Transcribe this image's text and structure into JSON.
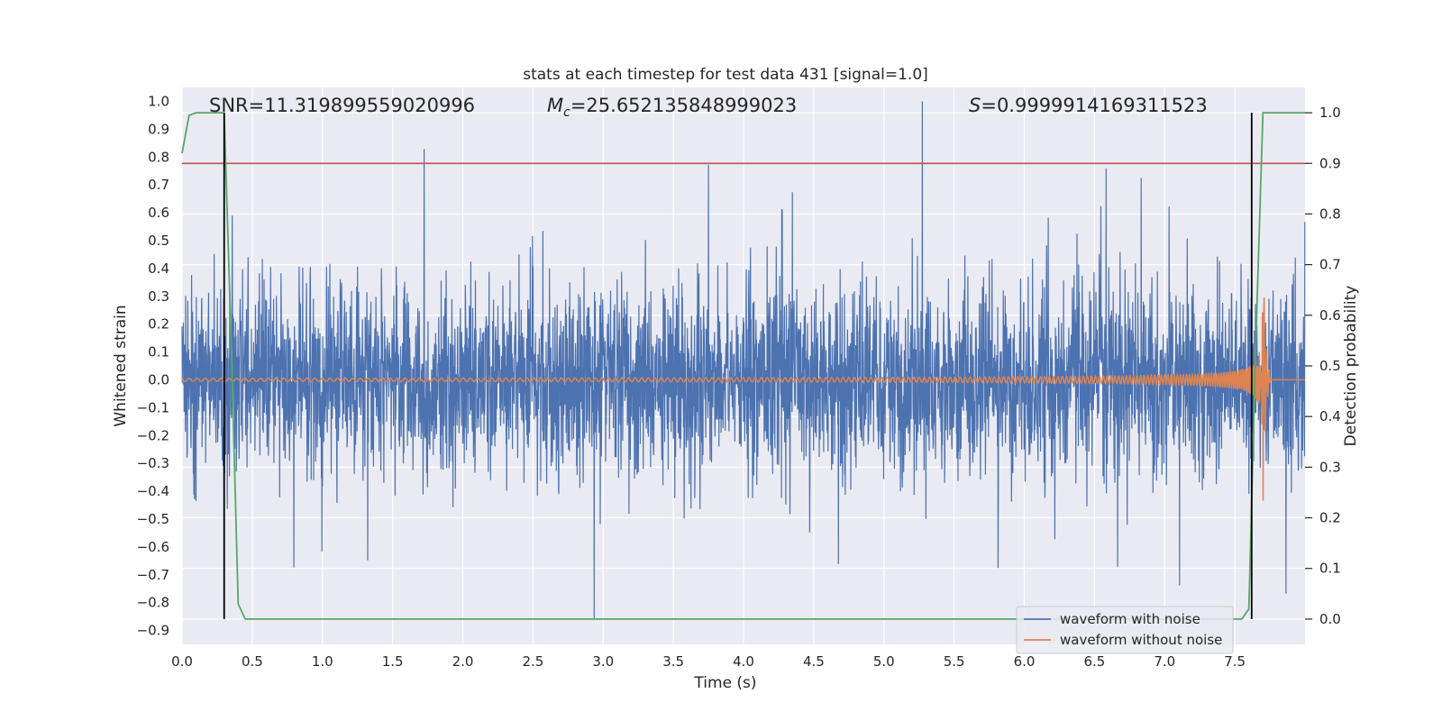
{
  "chart_data": {
    "type": "line",
    "title": "stats at each timestep for test data 431 [signal=1.0]",
    "xlabel": "Time (s)",
    "ylabel": "Whitened strain",
    "y2label": "Detection probability",
    "xlim": [
      0.0,
      8.0
    ],
    "ylim": [
      -0.95,
      1.05
    ],
    "y2lim": [
      -0.05,
      1.05
    ],
    "grid": true,
    "legend_position": "bottom-right",
    "x_ticks": [
      0.0,
      0.5,
      1.0,
      1.5,
      2.0,
      2.5,
      3.0,
      3.5,
      4.0,
      4.5,
      5.0,
      5.5,
      6.0,
      6.5,
      7.0,
      7.5
    ],
    "x_tick_labels": [
      "0.0",
      "0.5",
      "1.0",
      "1.5",
      "2.0",
      "2.5",
      "3.0",
      "3.5",
      "4.0",
      "4.5",
      "5.0",
      "5.5",
      "6.0",
      "6.5",
      "7.0",
      "7.5"
    ],
    "y_ticks": [
      1.0,
      0.9,
      0.8,
      0.7,
      0.6,
      0.5,
      0.4,
      0.3,
      0.2,
      0.1,
      0.0,
      -0.1,
      -0.2,
      -0.3,
      -0.4,
      -0.5,
      -0.6,
      -0.7,
      -0.8,
      -0.9
    ],
    "y_tick_labels": [
      "1.0",
      "0.9",
      "0.8",
      "0.7",
      "0.6",
      "0.5",
      "0.4",
      "0.3",
      "0.2",
      "0.1",
      "0.0",
      "−0.1",
      "−0.2",
      "−0.3",
      "−0.4",
      "−0.5",
      "−0.6",
      "−0.7",
      "−0.8",
      "−0.9"
    ],
    "y2_ticks": [
      1.0,
      0.9,
      0.8,
      0.7,
      0.6,
      0.5,
      0.4,
      0.3,
      0.2,
      0.1,
      0.0
    ],
    "y2_tick_labels": [
      "1.0",
      "0.9",
      "0.8",
      "0.7",
      "0.6",
      "0.5",
      "0.4",
      "0.3",
      "0.2",
      "0.1",
      "0.0"
    ],
    "annotations": {
      "snr": "SNR=11.319899559020996",
      "mc_symbol": "M",
      "mc_sub": "c",
      "mc_value": "=25.652135848999023",
      "s_symbol": "S",
      "s_value": "=0.9999914169311523"
    },
    "threshold_line": {
      "value": 0.9,
      "axis": "y2",
      "color": "#c44e52"
    },
    "vertical_lines": [
      {
        "x": 0.3,
        "y2_from": 0.0,
        "y2_to": 1.0,
        "color": "#000000"
      },
      {
        "x": 7.62,
        "y2_from": 0.0,
        "y2_to": 1.0,
        "color": "#000000"
      }
    ],
    "series": [
      {
        "name": "waveform with noise",
        "color": "#4c72b0",
        "axis": "y",
        "samples": 4096,
        "x_range": [
          0.0,
          7.999
        ],
        "y_min": -0.86,
        "y_max": 1.0,
        "typical_envelope": [
          -0.35,
          0.45
        ]
      },
      {
        "name": "waveform without noise",
        "color": "#dd8452",
        "axis": "y",
        "x_range": [
          0.0,
          8.0
        ],
        "merger_x": 7.7,
        "peak_amplitude": 0.75,
        "trough": -0.53
      },
      {
        "name": "",
        "color": "#55a868",
        "axis": "y2",
        "x": [
          0.0,
          0.05,
          0.1,
          0.15,
          0.2,
          0.25,
          0.3,
          0.35,
          0.4,
          0.45,
          0.5,
          1.0,
          2.0,
          3.0,
          4.0,
          5.0,
          6.0,
          7.0,
          7.5,
          7.55,
          7.6,
          7.65,
          7.7,
          7.75,
          7.8,
          8.0
        ],
        "y": [
          0.92,
          0.995,
          1.0,
          1.0,
          1.0,
          1.0,
          1.0,
          0.55,
          0.03,
          0.0,
          0.0,
          0.0,
          0.0,
          0.0,
          0.0,
          0.0,
          0.0,
          0.0,
          0.0,
          0.0,
          0.02,
          0.55,
          1.0,
          1.0,
          1.0,
          1.0
        ]
      }
    ],
    "legend": [
      "waveform with noise",
      "waveform without noise"
    ]
  }
}
